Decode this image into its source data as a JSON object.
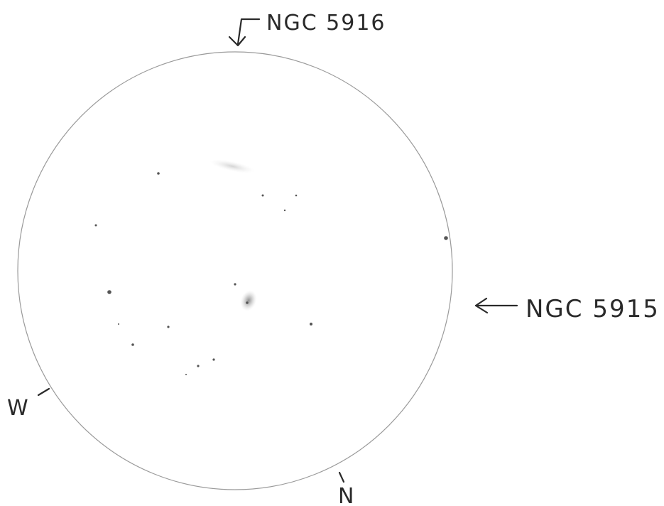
{
  "labels": {
    "top_object": "NGC 5916",
    "right_object": "NGC 5915",
    "west": "W",
    "north": "N"
  },
  "colors": {
    "ink": "#2a2a2a",
    "circle": "#9a9a9a",
    "star": "#555555",
    "galaxy": "#b8b8b8",
    "paper": "#ffffff"
  }
}
